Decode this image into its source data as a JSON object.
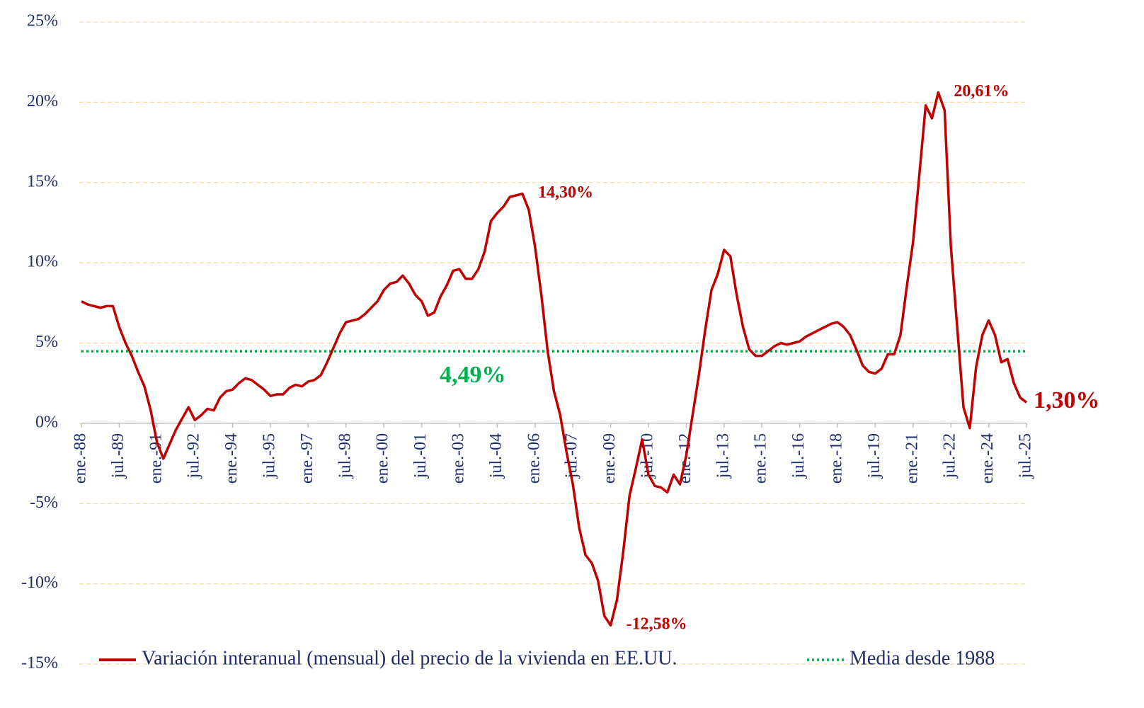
{
  "chart_data": {
    "type": "line",
    "categories": [
      "ene.-88",
      null,
      null,
      null,
      null,
      null,
      "jul.-89",
      null,
      null,
      null,
      null,
      null,
      "ene.-91",
      null,
      null,
      null,
      null,
      null,
      "jul.-92",
      null,
      null,
      null,
      null,
      null,
      "ene.-94",
      null,
      null,
      null,
      null,
      null,
      "jul.-95",
      null,
      null,
      null,
      null,
      null,
      "ene.-97",
      null,
      null,
      null,
      null,
      null,
      "jul.-98",
      null,
      null,
      null,
      null,
      null,
      "ene.-00",
      null,
      null,
      null,
      null,
      null,
      "jul.-01",
      null,
      null,
      null,
      null,
      null,
      "ene.-03",
      null,
      null,
      null,
      null,
      null,
      "jul.-04",
      null,
      null,
      null,
      null,
      null,
      "ene.-06",
      null,
      null,
      null,
      null,
      null,
      "jul.-07",
      null,
      null,
      null,
      null,
      null,
      "ene.-09",
      null,
      null,
      null,
      null,
      null,
      "jul.-10",
      null,
      null,
      null,
      null,
      null,
      "ene.-12",
      null,
      null,
      null,
      null,
      null,
      "jul.-13",
      null,
      null,
      null,
      null,
      null,
      "ene.-15",
      null,
      null,
      null,
      null,
      null,
      "jul.-16",
      null,
      null,
      null,
      null,
      null,
      "ene.-18",
      null,
      null,
      null,
      null,
      null,
      "jul.-19",
      null,
      null,
      null,
      null,
      null,
      "ene.-21",
      null,
      null,
      null,
      null,
      null,
      "jul.-22",
      null,
      null,
      null,
      null,
      null,
      "ene.-24",
      null,
      null,
      null,
      null,
      null,
      "jul.-25"
    ],
    "series": [
      {
        "name": "Variación interanual (mensual) del precio de la vivienda en EE.UU.",
        "color": "#c00000",
        "values": [
          7.6,
          7.4,
          7.3,
          7.2,
          7.3,
          7.3,
          6.0,
          5.0,
          4.2,
          3.2,
          2.3,
          0.8,
          -1.2,
          -2.2,
          -1.3,
          -0.4,
          0.3,
          1.0,
          0.2,
          0.5,
          0.9,
          0.8,
          1.6,
          2.0,
          2.1,
          2.5,
          2.8,
          2.7,
          2.4,
          2.1,
          1.7,
          1.8,
          1.8,
          2.2,
          2.4,
          2.3,
          2.6,
          2.7,
          3.0,
          3.8,
          4.7,
          5.6,
          6.3,
          6.4,
          6.5,
          6.8,
          7.2,
          7.6,
          8.3,
          8.7,
          8.8,
          9.2,
          8.7,
          8.0,
          7.6,
          6.7,
          6.9,
          7.9,
          8.6,
          9.5,
          9.6,
          9.0,
          9.0,
          9.6,
          10.7,
          12.6,
          13.1,
          13.5,
          14.1,
          14.2,
          14.3,
          13.3,
          11.0,
          8.0,
          4.5,
          2.0,
          0.5,
          -1.8,
          -3.8,
          -6.5,
          -8.2,
          -8.7,
          -9.8,
          -12.0,
          -12.58,
          -11.0,
          -8.0,
          -4.5,
          -2.8,
          -1.0,
          -3.2,
          -3.9,
          -4.0,
          -4.3,
          -3.2,
          -3.8,
          -2.0,
          0.5,
          3.0,
          5.8,
          8.3,
          9.3,
          10.8,
          10.4,
          8.0,
          6.0,
          4.6,
          4.2,
          4.2,
          4.5,
          4.8,
          5.0,
          4.9,
          5.0,
          5.1,
          5.4,
          5.6,
          5.8,
          6.0,
          6.2,
          6.3,
          6.0,
          5.5,
          4.6,
          3.6,
          3.2,
          3.1,
          3.4,
          4.3,
          4.3,
          5.5,
          8.5,
          11.3,
          15.5,
          19.8,
          19.0,
          20.61,
          19.5,
          11.0,
          6.0,
          1.0,
          -0.3,
          3.5,
          5.5,
          6.4,
          5.5,
          3.8,
          4.0,
          2.5,
          1.6,
          1.3
        ],
        "value_labels": [
          null,
          null,
          null,
          null,
          null,
          null,
          null,
          null,
          null,
          null,
          null,
          null,
          null,
          null,
          null,
          null,
          null,
          null,
          null,
          null,
          null,
          null,
          null,
          null,
          null,
          null,
          null,
          null,
          null,
          null,
          null,
          null,
          null,
          null,
          null,
          null,
          null,
          null,
          null,
          null,
          null,
          null,
          null,
          null,
          null,
          null,
          null,
          null,
          null,
          null,
          null,
          null,
          null,
          null,
          null,
          null,
          null,
          null,
          null,
          null,
          null,
          null,
          null,
          null,
          null,
          null,
          null,
          null,
          null,
          null,
          "14,30%",
          null,
          null,
          null,
          null,
          null,
          null,
          null,
          null,
          null,
          null,
          null,
          null,
          null,
          "-12,58%",
          null,
          null,
          null,
          null,
          null,
          null,
          null,
          null,
          null,
          null,
          null,
          null,
          null,
          null,
          null,
          null,
          null,
          null,
          null,
          null,
          null,
          null,
          null,
          null,
          null,
          null,
          null,
          null,
          null,
          null,
          null,
          null,
          null,
          null,
          null,
          null,
          null,
          null,
          null,
          null,
          null,
          null,
          null,
          null,
          null,
          null,
          null,
          null,
          null,
          null,
          null,
          "20,61%",
          null,
          null,
          null,
          null,
          null,
          null,
          null,
          null,
          null,
          null,
          null,
          null,
          null,
          "1,30%"
        ]
      }
    ],
    "mean_line": {
      "name": "Media desde 1988",
      "value": 4.49,
      "label": "4,49%",
      "color": "#00b050"
    },
    "ylim": [
      -15,
      25
    ],
    "yticks": [
      {
        "value": -15,
        "label": "-15%"
      },
      {
        "value": -10,
        "label": "-10%"
      },
      {
        "value": -5,
        "label": "-5%"
      },
      {
        "value": 0,
        "label": "0%"
      },
      {
        "value": 5,
        "label": "5%"
      },
      {
        "value": 10,
        "label": "10%"
      },
      {
        "value": 15,
        "label": "15%"
      },
      {
        "value": 20,
        "label": "20%"
      },
      {
        "value": 25,
        "label": "25%"
      }
    ],
    "grid": true
  }
}
